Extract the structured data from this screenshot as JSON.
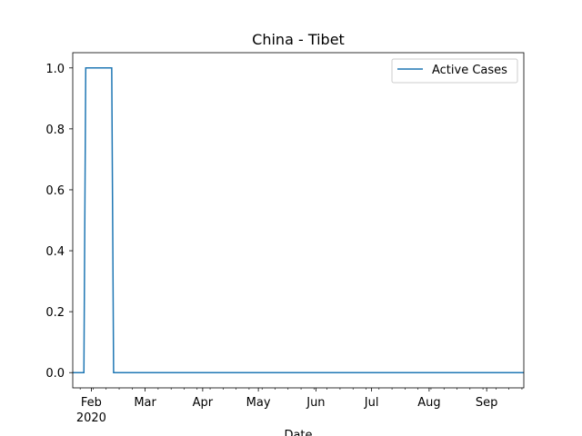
{
  "chart_data": {
    "type": "line",
    "title": "China - Tibet",
    "xlabel": "Date",
    "ylabel": "",
    "legend": {
      "placement": "top-right",
      "entries": [
        "Active Cases"
      ]
    },
    "grid": false,
    "xlim": [
      "2020-01-22",
      "2020-09-21"
    ],
    "ylim": [
      -0.05,
      1.05
    ],
    "x_ticks": [
      {
        "date": "2020-02-01",
        "label": "Feb",
        "sublabel": "2020"
      },
      {
        "date": "2020-03-01",
        "label": "Mar"
      },
      {
        "date": "2020-04-01",
        "label": "Apr"
      },
      {
        "date": "2020-05-01",
        "label": "May"
      },
      {
        "date": "2020-06-01",
        "label": "Jun"
      },
      {
        "date": "2020-07-01",
        "label": "Jul"
      },
      {
        "date": "2020-08-01",
        "label": "Aug"
      },
      {
        "date": "2020-09-01",
        "label": "Sep"
      }
    ],
    "y_ticks": [
      {
        "value": 0.0,
        "label": "0.0"
      },
      {
        "value": 0.2,
        "label": "0.2"
      },
      {
        "value": 0.4,
        "label": "0.4"
      },
      {
        "value": 0.6,
        "label": "0.6"
      },
      {
        "value": 0.8,
        "label": "0.8"
      },
      {
        "value": 1.0,
        "label": "1.0"
      }
    ],
    "series": [
      {
        "name": "Active Cases",
        "color": "#1f77b4",
        "points": [
          {
            "x": "2020-01-22",
            "y": 0
          },
          {
            "x": "2020-01-28",
            "y": 0
          },
          {
            "x": "2020-01-29",
            "y": 1
          },
          {
            "x": "2020-02-12",
            "y": 1
          },
          {
            "x": "2020-02-13",
            "y": 0
          },
          {
            "x": "2020-09-21",
            "y": 0
          }
        ]
      }
    ]
  }
}
